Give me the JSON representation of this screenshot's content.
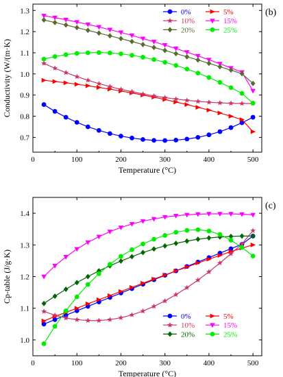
{
  "chart_data": [
    {
      "type": "line",
      "panel_label": "(b)",
      "xlabel": "Temperature (°C)",
      "ylabel": "Conductivity (W/(m·K)",
      "xlim": [
        0,
        520
      ],
      "ylim": [
        0.63,
        1.33
      ],
      "xticks": [
        0,
        100,
        200,
        300,
        400,
        500
      ],
      "yticks": [
        0.7,
        0.8,
        0.9,
        1.0,
        1.1,
        1.2,
        1.3
      ],
      "ytick_labels": [
        "0.7",
        "0.8",
        "0.9",
        "1.0",
        "1.1",
        "1.2",
        "1.3"
      ],
      "legend": "top-right",
      "x": [
        25,
        50,
        75,
        100,
        125,
        150,
        175,
        200,
        225,
        250,
        275,
        300,
        325,
        350,
        375,
        400,
        425,
        450,
        475,
        500
      ],
      "series": [
        {
          "name": "0%",
          "color": "#0000ff",
          "marker": "circle",
          "values": [
            0.855,
            0.823,
            0.795,
            0.771,
            0.75,
            0.733,
            0.718,
            0.706,
            0.697,
            0.69,
            0.686,
            0.685,
            0.687,
            0.692,
            0.7,
            0.712,
            0.727,
            0.746,
            0.769,
            0.795
          ]
        },
        {
          "name": "5%",
          "color": "#ff0000",
          "marker": "triangle-right",
          "values": [
            0.97,
            0.964,
            0.958,
            0.951,
            0.944,
            0.936,
            0.928,
            0.919,
            0.91,
            0.9,
            0.89,
            0.879,
            0.867,
            0.855,
            0.842,
            0.829,
            0.815,
            0.8,
            0.784,
            0.727
          ]
        },
        {
          "name": "10%",
          "color": "#cc3366",
          "marker": "star",
          "values": [
            1.05,
            1.027,
            1.006,
            0.987,
            0.97,
            0.954,
            0.94,
            0.927,
            0.916,
            0.905,
            0.896,
            0.888,
            0.881,
            0.875,
            0.87,
            0.866,
            0.863,
            0.861,
            0.86,
            0.86
          ]
        },
        {
          "name": "15%",
          "color": "#ff00ff",
          "marker": "triangle-down",
          "values": [
            1.275,
            1.266,
            1.256,
            1.245,
            1.234,
            1.222,
            1.209,
            1.196,
            1.182,
            1.167,
            1.152,
            1.136,
            1.12,
            1.103,
            1.085,
            1.067,
            1.048,
            1.028,
            1.008,
            0.92
          ]
        },
        {
          "name": "20%",
          "color": "#556b2f",
          "marker": "diamond",
          "values": [
            1.255,
            1.243,
            1.231,
            1.219,
            1.206,
            1.193,
            1.18,
            1.167,
            1.153,
            1.139,
            1.125,
            1.111,
            1.096,
            1.081,
            1.066,
            1.05,
            1.034,
            1.018,
            1.001,
            0.955
          ]
        },
        {
          "name": "25%",
          "color": "#00ee00",
          "marker": "circle",
          "values": [
            1.07,
            1.082,
            1.091,
            1.097,
            1.1,
            1.101,
            1.099,
            1.095,
            1.088,
            1.079,
            1.068,
            1.055,
            1.04,
            1.023,
            1.004,
            0.983,
            0.96,
            0.935,
            0.908,
            0.862
          ]
        }
      ]
    },
    {
      "type": "line",
      "panel_label": "(c)",
      "xlabel": "Temperature (°C)",
      "ylabel": "Cp-table (J/g·K)",
      "xlim": [
        0,
        520
      ],
      "ylim": [
        0.95,
        1.45
      ],
      "xticks": [
        0,
        100,
        200,
        300,
        400,
        500
      ],
      "yticks": [
        1.0,
        1.1,
        1.2,
        1.3,
        1.4
      ],
      "ytick_labels": [
        "1.0",
        "1.1",
        "1.2",
        "1.3",
        "1.4"
      ],
      "legend": "bottom-right",
      "x": [
        25,
        50,
        75,
        100,
        125,
        150,
        175,
        200,
        225,
        250,
        275,
        300,
        325,
        350,
        375,
        400,
        425,
        450,
        475,
        500
      ],
      "series": [
        {
          "name": "0%",
          "color": "#0000ff",
          "marker": "circle",
          "values": [
            1.05,
            1.064,
            1.078,
            1.092,
            1.106,
            1.12,
            1.134,
            1.148,
            1.162,
            1.176,
            1.19,
            1.204,
            1.218,
            1.232,
            1.246,
            1.26,
            1.274,
            1.288,
            1.302,
            1.328
          ]
        },
        {
          "name": "5%",
          "color": "#ff0000",
          "marker": "triangle-right",
          "values": [
            1.06,
            1.074,
            1.087,
            1.1,
            1.114,
            1.127,
            1.14,
            1.153,
            1.166,
            1.179,
            1.192,
            1.205,
            1.218,
            1.23,
            1.243,
            1.255,
            1.267,
            1.279,
            1.29,
            1.3
          ]
        },
        {
          "name": "10%",
          "color": "#cc3366",
          "marker": "star",
          "values": [
            1.09,
            1.078,
            1.069,
            1.064,
            1.061,
            1.061,
            1.064,
            1.07,
            1.079,
            1.091,
            1.106,
            1.123,
            1.143,
            1.165,
            1.189,
            1.215,
            1.243,
            1.272,
            1.303,
            1.345
          ]
        },
        {
          "name": "15%",
          "color": "#ff00ff",
          "marker": "triangle-down",
          "values": [
            1.2,
            1.234,
            1.262,
            1.287,
            1.308,
            1.326,
            1.342,
            1.355,
            1.366,
            1.375,
            1.382,
            1.388,
            1.392,
            1.395,
            1.397,
            1.398,
            1.398,
            1.398,
            1.397,
            1.395
          ]
        },
        {
          "name": "20%",
          "color": "#006400",
          "marker": "diamond",
          "values": [
            1.115,
            1.138,
            1.16,
            1.181,
            1.2,
            1.218,
            1.234,
            1.249,
            1.263,
            1.276,
            1.287,
            1.297,
            1.305,
            1.312,
            1.318,
            1.322,
            1.325,
            1.327,
            1.328,
            1.328
          ]
        },
        {
          "name": "25%",
          "color": "#00ee00",
          "marker": "circle",
          "values": [
            0.988,
            1.043,
            1.092,
            1.136,
            1.175,
            1.209,
            1.239,
            1.264,
            1.285,
            1.303,
            1.318,
            1.33,
            1.34,
            1.346,
            1.348,
            1.344,
            1.333,
            1.315,
            1.292,
            1.265
          ]
        }
      ]
    }
  ]
}
